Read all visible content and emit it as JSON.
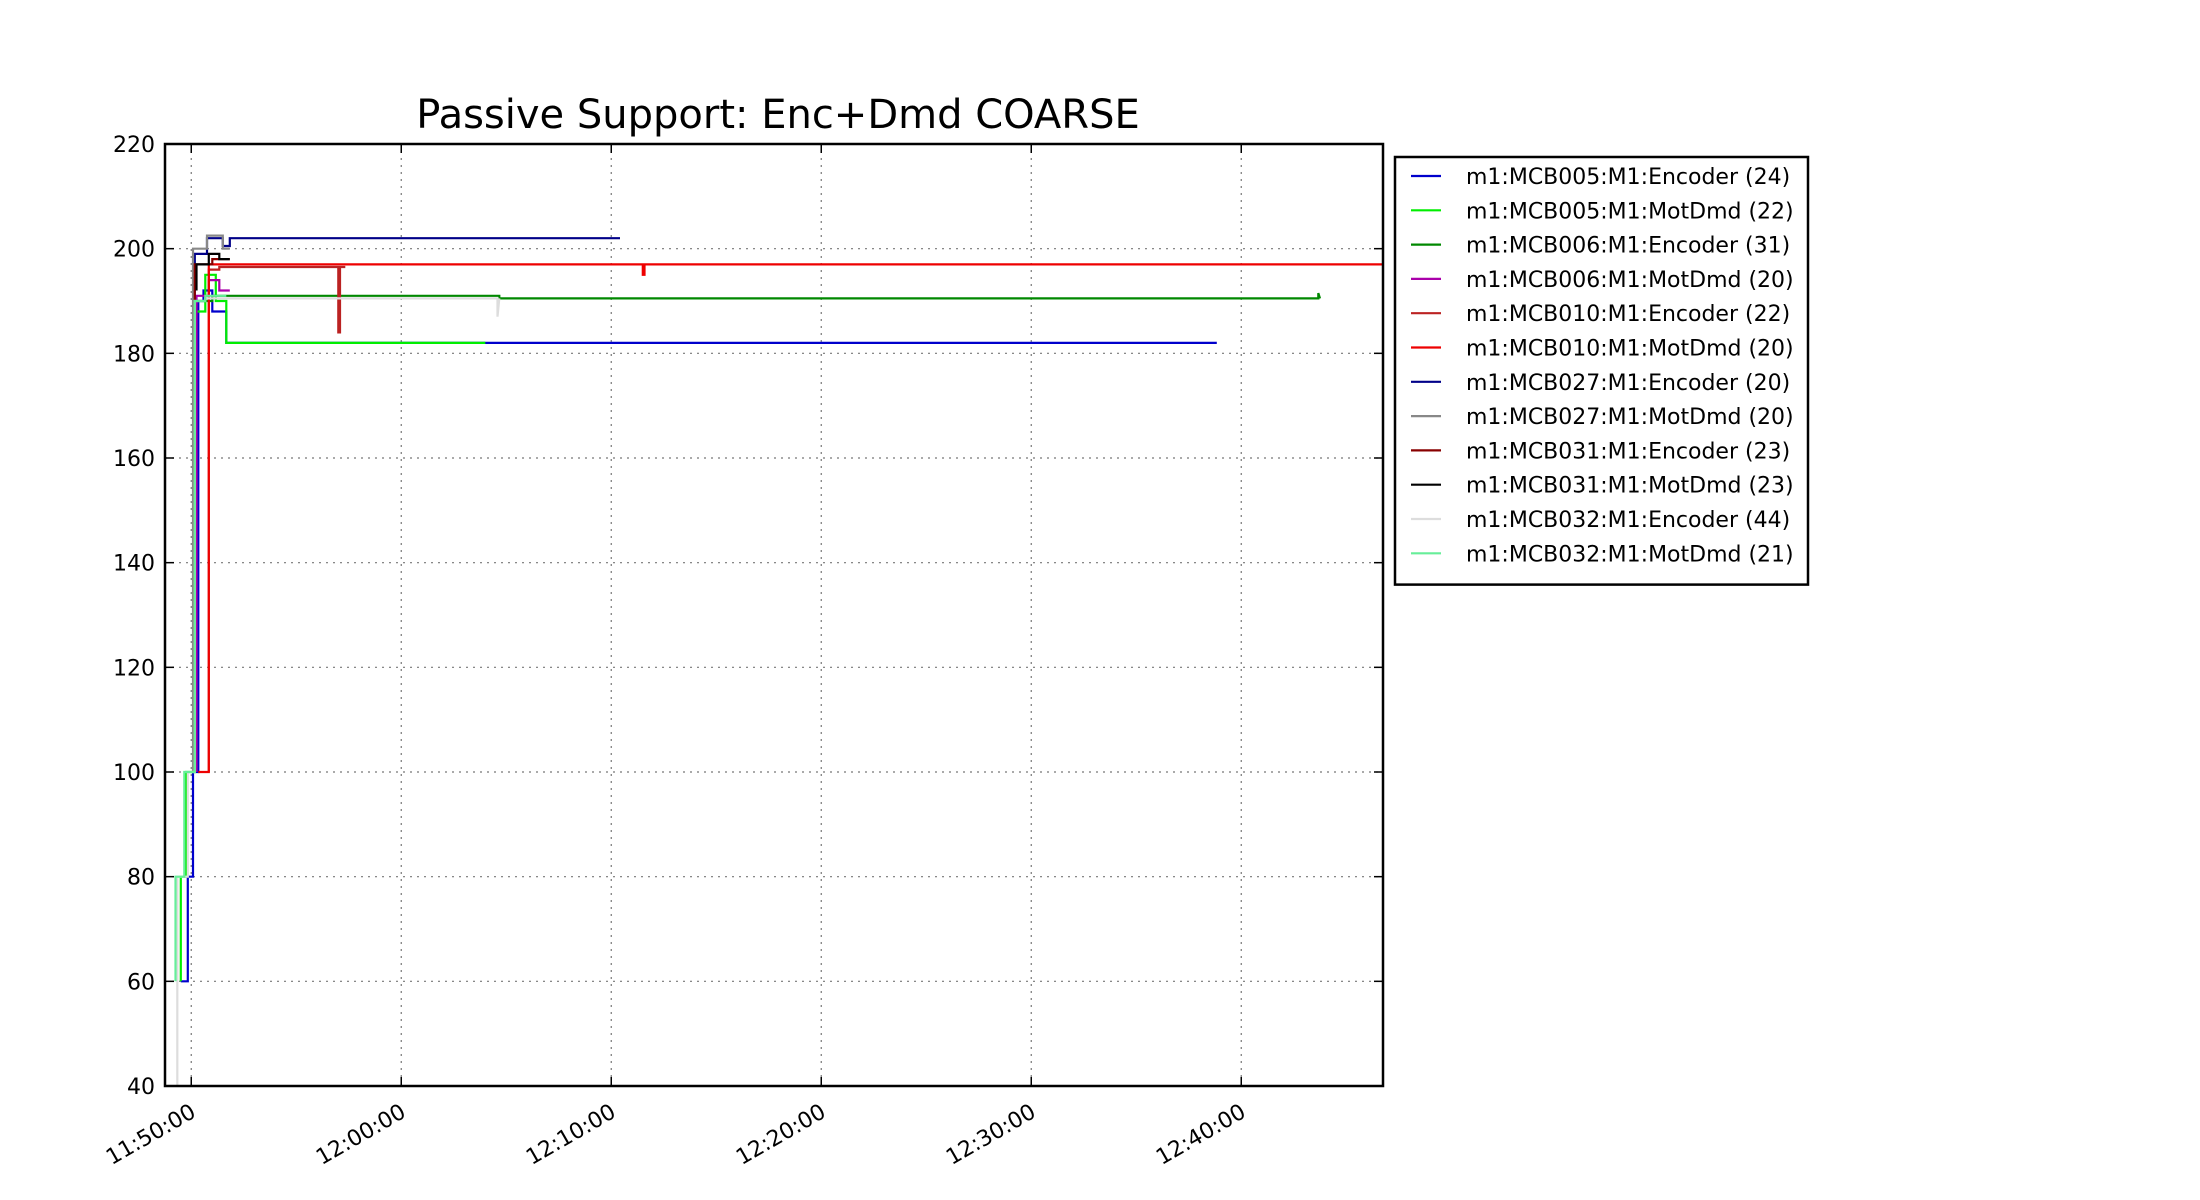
{
  "chart_data": {
    "type": "line",
    "title": "Passive Support:  Enc+Dmd COARSE",
    "xlabel": "",
    "ylabel": "",
    "xlim": [
      "11:48:45",
      "12:46:45"
    ],
    "ylim": [
      40,
      220
    ],
    "y_ticks": [
      40,
      60,
      80,
      100,
      120,
      140,
      160,
      180,
      200,
      220
    ],
    "x_ticks": [
      "11:50:00",
      "12:00:00",
      "12:10:00",
      "12:20:00",
      "12:30:00",
      "12:40:00"
    ],
    "grid": true,
    "legend_position": "outside-right-top",
    "series": [
      {
        "name": "m1:MCB005:M1:Encoder (24)",
        "color": "#0000cc",
        "x": [
          "11:49:30",
          "11:49:50",
          "11:49:50",
          "11:50:05",
          "11:50:05",
          "11:50:20",
          "11:50:20",
          "11:50:35",
          "11:50:35",
          "11:51:00",
          "11:51:00",
          "11:51:40",
          "11:51:40",
          "12:38:50"
        ],
        "y": [
          60,
          60,
          80,
          80,
          100,
          100,
          190,
          190,
          192,
          192,
          188,
          188,
          182,
          182
        ]
      },
      {
        "name": "m1:MCB005:M1:MotDmd (22)",
        "color": "#00ee00",
        "x": [
          "11:49:30",
          "11:49:30",
          "11:49:45",
          "11:49:45",
          "11:50:10",
          "11:50:10",
          "11:50:40",
          "11:50:40",
          "11:51:10",
          "11:51:10",
          "11:51:40",
          "11:51:40",
          "12:04:00"
        ],
        "y": [
          60,
          80,
          80,
          100,
          100,
          188,
          188,
          195,
          195,
          190,
          190,
          182,
          182
        ]
      },
      {
        "name": "m1:MCB006:M1:Encoder (31)",
        "color": "#008800",
        "x": [
          "11:50:10",
          "11:50:10",
          "11:51:00",
          "11:51:00",
          "12:04:40",
          "12:04:40",
          "12:43:40",
          "12:43:40",
          "12:43:45"
        ],
        "y": [
          100,
          190,
          190,
          191,
          191,
          190.5,
          190.5,
          191.5,
          190.5
        ]
      },
      {
        "name": "m1:MCB006:M1:MotDmd (20)",
        "color": "#aa00aa",
        "x": [
          "11:50:15",
          "11:50:15",
          "11:50:50",
          "11:50:50",
          "11:51:20",
          "11:51:20",
          "11:51:50"
        ],
        "y": [
          100,
          191,
          191,
          194,
          194,
          192,
          192
        ]
      },
      {
        "name": "m1:MCB010:M1:Encoder (22)",
        "color": "#bb2222",
        "x": [
          "11:50:50",
          "11:50:50",
          "11:51:20",
          "11:51:20",
          "11:57:00",
          "11:57:00",
          "11:57:05",
          "11:57:05",
          "11:57:20"
        ],
        "y": [
          100,
          196,
          196,
          196.5,
          196.5,
          184,
          184,
          196.5,
          196.5
        ]
      },
      {
        "name": "m1:MCB010:M1:MotDmd (20)",
        "color": "#ee0000",
        "x": [
          "11:50:20",
          "11:50:50",
          "11:50:50",
          "11:51:20",
          "11:51:20",
          "12:11:30",
          "12:11:30",
          "12:11:35",
          "12:11:35",
          "12:46:45"
        ],
        "y": [
          100,
          100,
          197,
          197,
          197,
          197,
          195,
          195,
          197,
          197
        ]
      },
      {
        "name": "m1:MCB027:M1:Encoder (20)",
        "color": "#000088",
        "x": [
          "11:50:10",
          "11:50:10",
          "11:50:45",
          "11:50:45",
          "11:51:30",
          "11:51:30",
          "11:51:50",
          "11:51:50",
          "12:10:25"
        ],
        "y": [
          100,
          199,
          199,
          202,
          202,
          200.5,
          200.5,
          202,
          202
        ]
      },
      {
        "name": "m1:MCB027:M1:MotDmd (20)",
        "color": "#888888",
        "x": [
          "11:50:05",
          "11:50:05",
          "11:50:45",
          "11:50:45",
          "11:51:30",
          "11:51:30",
          "11:51:50"
        ],
        "y": [
          100,
          200,
          200,
          202.5,
          202.5,
          200,
          200
        ]
      },
      {
        "name": "m1:MCB031:M1:Encoder (23)",
        "color": "#880000",
        "x": [
          "11:50:10",
          "11:50:10",
          "11:51:00",
          "11:51:00",
          "11:51:50"
        ],
        "y": [
          100,
          197,
          197,
          198,
          198
        ]
      },
      {
        "name": "m1:MCB031:M1:MotDmd (23)",
        "color": "#000000",
        "x": [
          "11:50:15",
          "11:50:15",
          "11:50:50",
          "11:50:50",
          "11:51:20",
          "11:51:20",
          "11:51:50"
        ],
        "y": [
          192,
          197,
          197,
          199,
          199,
          198,
          198
        ]
      },
      {
        "name": "m1:MCB032:M1:Encoder (44)",
        "color": "#dddddd",
        "x": [
          "11:49:20",
          "11:49:20",
          "11:49:50",
          "11:49:50",
          "11:50:10",
          "11:50:10",
          "11:50:40",
          "11:50:40",
          "12:04:35",
          "12:04:35",
          "12:04:40"
        ],
        "y": [
          40,
          80,
          80,
          100,
          100,
          190,
          190,
          190.5,
          190.5,
          187,
          190.5
        ]
      },
      {
        "name": "m1:MCB032:M1:MotDmd (21)",
        "color": "#66ee99",
        "x": [
          "11:49:15",
          "11:49:15",
          "11:49:40",
          "11:49:40",
          "11:50:10",
          "11:50:10",
          "11:50:40",
          "11:50:40",
          "11:51:40"
        ],
        "y": [
          60,
          80,
          80,
          100,
          100,
          190,
          190,
          191,
          191
        ]
      }
    ]
  }
}
